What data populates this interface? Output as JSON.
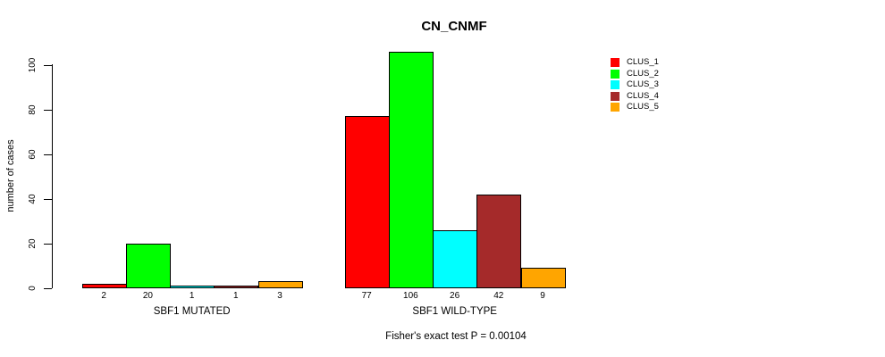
{
  "chart_data": {
    "type": "bar",
    "title": "CN_CNMF",
    "ylabel": "number of cases",
    "ylim": [
      0,
      110
    ],
    "yticks": [
      0,
      20,
      40,
      60,
      80,
      100
    ],
    "grid": false,
    "legend_position": "right",
    "categories": [
      "SBF1 MUTATED",
      "SBF1 WILD-TYPE"
    ],
    "series": [
      {
        "name": "CLUS_1",
        "color": "#FF0000",
        "values": [
          2,
          77
        ]
      },
      {
        "name": "CLUS_2",
        "color": "#00FF00",
        "values": [
          20,
          106
        ]
      },
      {
        "name": "CLUS_3",
        "color": "#00FFFF",
        "values": [
          1,
          26
        ]
      },
      {
        "name": "CLUS_4",
        "color": "#A52A2A",
        "values": [
          1,
          42
        ]
      },
      {
        "name": "CLUS_5",
        "color": "#FFA500",
        "values": [
          3,
          9
        ]
      }
    ],
    "bar_value_labels_shown": true,
    "footnote": "Fisher's exact test P = 0.00104"
  }
}
